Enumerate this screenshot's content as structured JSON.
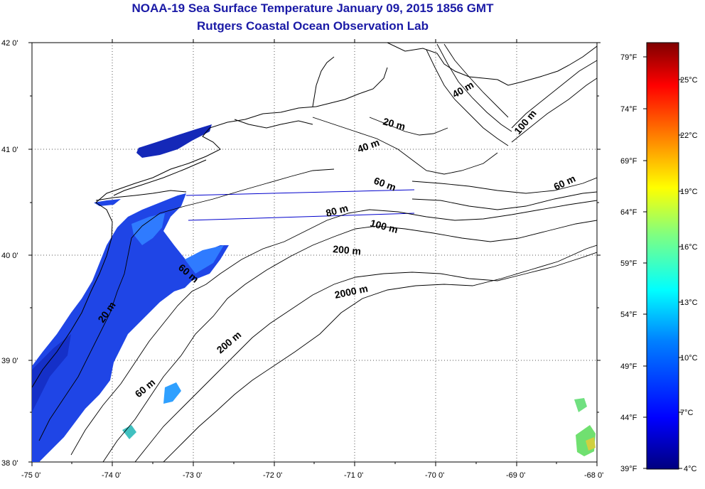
{
  "title": "NOAA-19 Sea Surface Temperature January 09, 2015 1856 GMT",
  "subtitle": "Rutgers Coastal Ocean Observation Lab",
  "lat_ticks": [
    "42 0'",
    "41 0'",
    "40 0'",
    "39 0'",
    "38 0'"
  ],
  "lon_ticks": [
    "-75 0'",
    "-74 0'",
    "-73 0'",
    "-72 0'",
    "-71 0'",
    "-70 0'",
    "-69 0'",
    "-68 0'"
  ],
  "contour_labels": [
    "40 m",
    "100 m",
    "20 m",
    "40 m",
    "60 m",
    "60 m",
    "80 m",
    "100 m",
    "200 m",
    "60 m",
    "2000 m",
    "20 m",
    "200 m",
    "60 m"
  ],
  "colorbar": {
    "fahrenheit": [
      "79°F",
      "74°F",
      "69°F",
      "64°F",
      "59°F",
      "54°F",
      "49°F",
      "44°F",
      "39°F"
    ],
    "celsius": [
      "25°C",
      "22°C",
      "19°C",
      "16°C",
      "13°C",
      "10°C",
      "7°C",
      "4°C"
    ],
    "colors": [
      "#00007f",
      "#0000ff",
      "#0080ff",
      "#00ffff",
      "#80ff80",
      "#ffff00",
      "#ff8000",
      "#ff0000",
      "#7f0000"
    ]
  },
  "colors": {
    "title": "#1a1aa6",
    "sst_blue": "#1a3fe0",
    "track_line": "#0000cc"
  }
}
